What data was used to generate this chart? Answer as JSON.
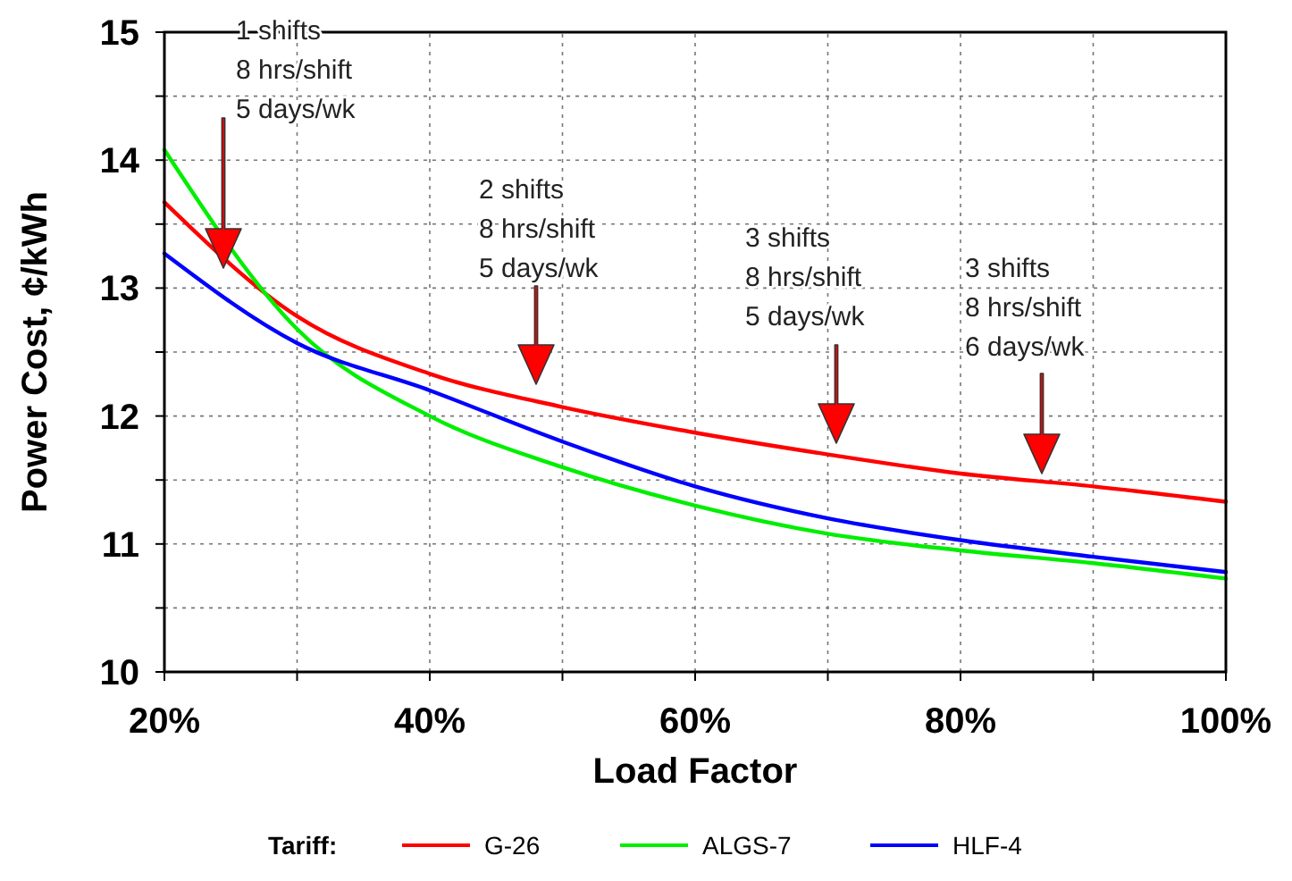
{
  "chart_data": {
    "type": "line",
    "xlabel": "Load Factor",
    "ylabel": "Power Cost, ¢/kWh",
    "legend_title": "Tariff:",
    "legend": "bottom",
    "grid": true,
    "x": [
      20,
      30,
      40,
      50,
      60,
      70,
      80,
      90,
      100
    ],
    "xlim": [
      20,
      100
    ],
    "xticks": [
      {
        "value": 20,
        "label": "20%"
      },
      {
        "value": 30,
        "label": null
      },
      {
        "value": 40,
        "label": "40%"
      },
      {
        "value": 50,
        "label": null
      },
      {
        "value": 60,
        "label": "60%"
      },
      {
        "value": 70,
        "label": null
      },
      {
        "value": 80,
        "label": "80%"
      },
      {
        "value": 90,
        "label": null
      },
      {
        "value": 100,
        "label": "100%"
      }
    ],
    "ylim": [
      10,
      15
    ],
    "yticks": [
      10,
      {
        "value": 10.5,
        "label": null
      },
      11,
      {
        "value": 11.5,
        "label": null
      },
      12,
      {
        "value": 12.5,
        "label": null
      },
      13,
      {
        "value": 13.5,
        "label": null
      },
      14,
      {
        "value": 14.5,
        "label": null
      },
      15
    ],
    "series": [
      {
        "name": "G-26",
        "color": "#ff0000",
        "values": [
          13.67,
          12.78,
          12.33,
          12.07,
          11.87,
          11.7,
          11.55,
          11.45,
          11.33
        ]
      },
      {
        "name": "ALGS-7",
        "color": "#00ee00",
        "values": [
          14.08,
          12.68,
          12.0,
          11.6,
          11.3,
          11.08,
          10.95,
          10.85,
          10.73
        ]
      },
      {
        "name": "HLF-4",
        "color": "#0000ff",
        "values": [
          13.27,
          12.57,
          12.2,
          11.8,
          11.45,
          11.2,
          11.03,
          10.9,
          10.78
        ]
      }
    ],
    "annotations": [
      "1 shifts\n8 hrs/shift\n5 days/wk",
      "2 shifts\n8 hrs/shift\n5 days/wk",
      "3 shifts\n8 hrs/shift\n5 days/wk",
      "3 shifts\n8 hrs/shift\n6 days/wk"
    ]
  }
}
